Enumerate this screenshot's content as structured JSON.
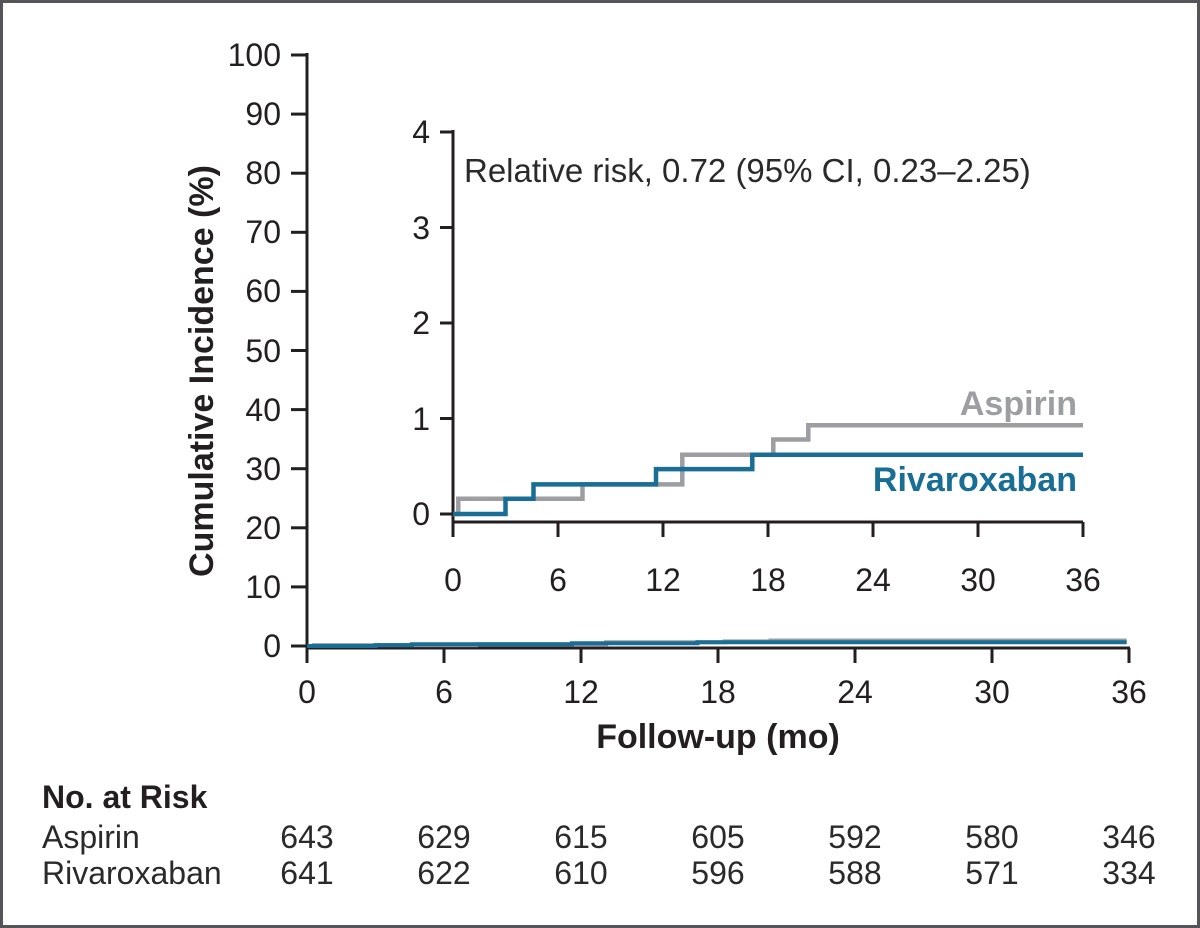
{
  "colors": {
    "aspirin": "#9c9ea1",
    "rivaroxaban": "#186e94",
    "axis": "#231f20",
    "text": "#231f20",
    "border": "#54545a",
    "background": "#ffffff"
  },
  "annotation": "Relative risk, 0.72 (95% CI, 0.23–2.25)",
  "legend": {
    "aspirin": "Aspirin",
    "rivaroxaban": "Rivaroxaban"
  },
  "chart_data": [
    {
      "id": "main",
      "type": "line",
      "subtype": "step",
      "title": "",
      "xlabel": "Follow-up (mo)",
      "ylabel": "Cumulative Incidence (%)",
      "xlim": [
        0,
        36
      ],
      "ylim": [
        0,
        100
      ],
      "xticks": [
        0,
        6,
        12,
        18,
        24,
        30,
        36
      ],
      "yticks": [
        0,
        10,
        20,
        30,
        40,
        50,
        60,
        70,
        80,
        90,
        100
      ],
      "grid": false,
      "legend_position": "none",
      "series": [
        {
          "name": "Aspirin",
          "color": "#9c9ea1",
          "steps": [
            [
              0,
              0
            ],
            [
              0.3,
              0.16
            ],
            [
              7.4,
              0.31
            ],
            [
              13.1,
              0.62
            ],
            [
              18.3,
              0.78
            ],
            [
              20.3,
              0.93
            ],
            [
              35.9,
              0.93
            ]
          ]
        },
        {
          "name": "Rivaroxaban",
          "color": "#186e94",
          "steps": [
            [
              0,
              0
            ],
            [
              3.0,
              0.16
            ],
            [
              4.6,
              0.31
            ],
            [
              11.6,
              0.47
            ],
            [
              17.1,
              0.62
            ],
            [
              35.9,
              0.62
            ]
          ]
        }
      ]
    },
    {
      "id": "inset",
      "type": "line",
      "subtype": "step",
      "title": "",
      "annotation": "Relative risk, 0.72 (95% CI, 0.23–2.25)",
      "xlabel": "",
      "ylabel": "",
      "xlim": [
        0,
        36
      ],
      "ylim": [
        0,
        4
      ],
      "xticks": [
        0,
        6,
        12,
        18,
        24,
        30,
        36
      ],
      "yticks": [
        0,
        1,
        2,
        3,
        4
      ],
      "grid": false,
      "legend_position": "inline-right",
      "series": [
        {
          "name": "Aspirin",
          "color": "#9c9ea1",
          "steps": [
            [
              0,
              0
            ],
            [
              0.3,
              0.16
            ],
            [
              7.4,
              0.31
            ],
            [
              13.1,
              0.62
            ],
            [
              18.3,
              0.78
            ],
            [
              20.3,
              0.93
            ],
            [
              36,
              0.93
            ]
          ]
        },
        {
          "name": "Rivaroxaban",
          "color": "#186e94",
          "steps": [
            [
              0,
              0
            ],
            [
              3.0,
              0.16
            ],
            [
              4.6,
              0.31
            ],
            [
              11.6,
              0.47
            ],
            [
              17.1,
              0.62
            ],
            [
              36,
              0.62
            ]
          ]
        }
      ]
    }
  ],
  "risk_table": {
    "title": "No. at Risk",
    "timepoints": [
      0,
      6,
      12,
      18,
      24,
      30,
      36
    ],
    "rows": [
      {
        "label": "Aspirin",
        "values": [
          "643",
          "629",
          "615",
          "605",
          "592",
          "580",
          "346"
        ]
      },
      {
        "label": "Rivaroxaban",
        "values": [
          "641",
          "622",
          "610",
          "596",
          "588",
          "571",
          "334"
        ]
      }
    ]
  }
}
